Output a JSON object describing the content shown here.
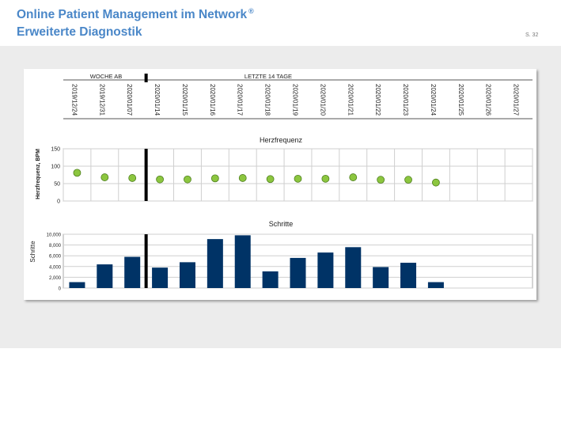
{
  "header": {
    "title": "Online Patient Management im Network",
    "title_mark": "®",
    "subtitle": "Erweiterte Diagnostik",
    "page_number": "S. 32"
  },
  "header_labels": {
    "week_label": "WOCHE AB",
    "days_label": "LETZTE 14 TAGE"
  },
  "colors": {
    "title": "#4a87c8",
    "dot_fill": "#8cc63f",
    "dot_stroke": "#4f7f1f",
    "bar": "#003366",
    "separator": "#000000"
  },
  "chart_data": [
    {
      "type": "scatter",
      "title": "Herzfrequenz",
      "ylabel": "Herzfrequenz, BPM",
      "xlabel": "",
      "grid": true,
      "ylim": [
        0,
        150
      ],
      "yticks": [
        "150",
        "100",
        "50",
        "0"
      ],
      "categories": [
        "2019/12/24",
        "2019/12/31",
        "2020/01/07",
        "2020/01/14",
        "2020/01/15",
        "2020/01/16",
        "2020/01/17",
        "2020/01/18",
        "2020/01/19",
        "2020/01/20",
        "2020/01/21",
        "2020/01/22",
        "2020/01/23",
        "2020/01/24",
        "2020/01/25",
        "2020/01/26",
        "2020/01/27"
      ],
      "values": [
        81,
        68,
        66,
        62,
        62,
        65,
        66,
        63,
        64,
        64,
        68,
        61,
        61,
        53,
        null,
        null,
        null
      ]
    },
    {
      "type": "bar",
      "title": "Schritte",
      "ylabel": "Schritte",
      "xlabel": "",
      "grid": true,
      "ylim": [
        0,
        10000
      ],
      "yticks": [
        "10,000",
        "8,000",
        "6,000",
        "4,000",
        "2,000",
        "0"
      ],
      "categories": [
        "2019/12/24",
        "2019/12/31",
        "2020/01/07",
        "2020/01/14",
        "2020/01/15",
        "2020/01/16",
        "2020/01/17",
        "2020/01/18",
        "2020/01/19",
        "2020/01/20",
        "2020/01/21",
        "2020/01/22",
        "2020/01/23",
        "2020/01/24",
        "2020/01/25",
        "2020/01/26",
        "2020/01/27"
      ],
      "values": [
        1100,
        4400,
        5800,
        3800,
        4800,
        9100,
        9800,
        3100,
        5600,
        6600,
        7600,
        3900,
        4700,
        1100,
        null,
        null,
        null
      ]
    }
  ]
}
